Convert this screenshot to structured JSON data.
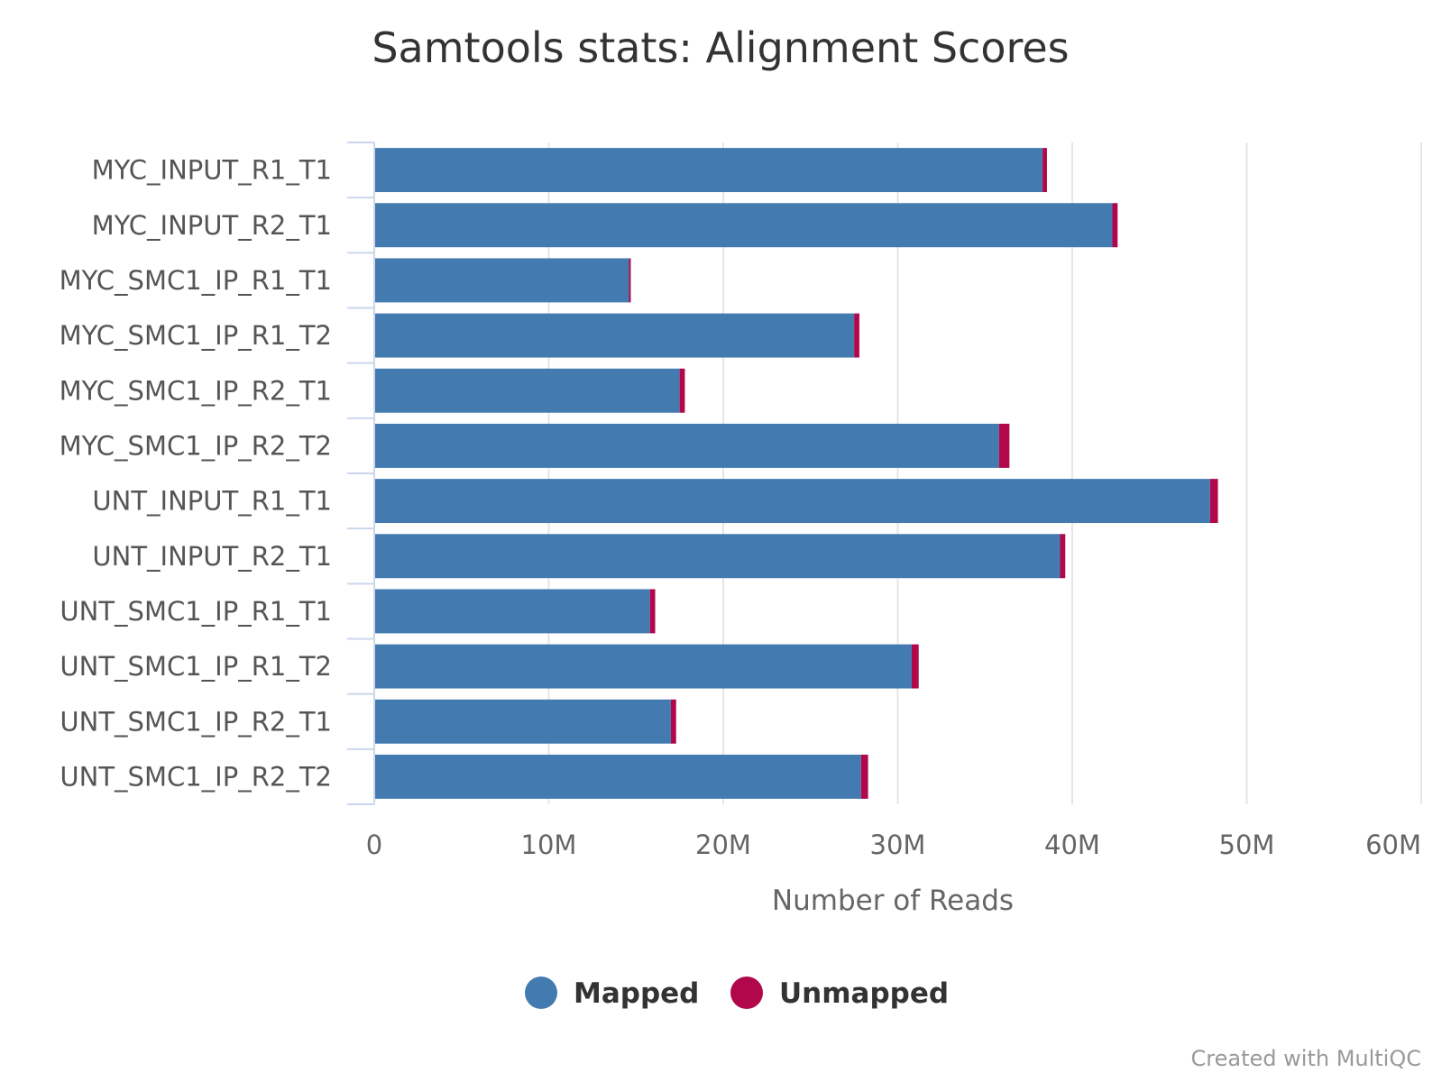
{
  "chart_data": {
    "type": "bar",
    "orientation": "horizontal",
    "stacked": true,
    "title": "Samtools stats: Alignment Scores",
    "xlabel": "Number of Reads",
    "ylabel": "",
    "xlim": [
      0,
      60000000
    ],
    "x_ticks": [
      {
        "value": 0,
        "label": "0"
      },
      {
        "value": 10000000,
        "label": "10M"
      },
      {
        "value": 20000000,
        "label": "20M"
      },
      {
        "value": 30000000,
        "label": "30M"
      },
      {
        "value": 40000000,
        "label": "40M"
      },
      {
        "value": 50000000,
        "label": "50M"
      },
      {
        "value": 60000000,
        "label": "60M"
      }
    ],
    "grid": true,
    "legend_position": "bottom-center",
    "categories": [
      "MYC_INPUT_R1_T1",
      "MYC_INPUT_R2_T1",
      "MYC_SMC1_IP_R1_T1",
      "MYC_SMC1_IP_R1_T2",
      "MYC_SMC1_IP_R2_T1",
      "MYC_SMC1_IP_R2_T2",
      "UNT_INPUT_R1_T1",
      "UNT_INPUT_R2_T1",
      "UNT_SMC1_IP_R1_T1",
      "UNT_SMC1_IP_R1_T2",
      "UNT_SMC1_IP_R2_T1",
      "UNT_SMC1_IP_R2_T2"
    ],
    "series": [
      {
        "name": "Mapped",
        "color": "#437bb1",
        "values": [
          38300000,
          42300000,
          14600000,
          27500000,
          17500000,
          35800000,
          47900000,
          39300000,
          15800000,
          30800000,
          17000000,
          27900000
        ]
      },
      {
        "name": "Unmapped",
        "color": "#b1084c",
        "values": [
          250000,
          300000,
          100000,
          300000,
          300000,
          600000,
          450000,
          300000,
          300000,
          400000,
          300000,
          400000
        ]
      }
    ]
  },
  "credit": "Created with MultiQC"
}
